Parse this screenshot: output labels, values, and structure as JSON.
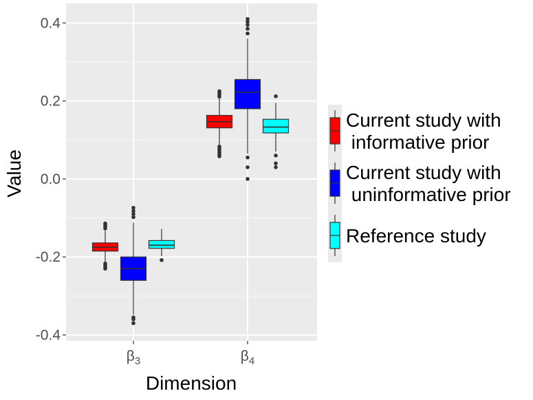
{
  "chart_data": {
    "type": "boxplot",
    "title": "",
    "xlabel": "Dimension",
    "ylabel": "Value",
    "ylim": [
      -0.415,
      0.45
    ],
    "yticks": [
      -0.4,
      -0.2,
      0.0,
      0.2,
      0.4
    ],
    "ytick_labels": [
      "-0.4",
      "-0.2",
      "0.0",
      "0.2",
      "0.4"
    ],
    "grid": true,
    "legend_position": "right",
    "categories": [
      {
        "base": "β",
        "sub": "3"
      },
      {
        "base": "β",
        "sub": "4"
      }
    ],
    "series": [
      {
        "name": "Current study with informative prior",
        "legend_lines": [
          "Current study with",
          " informative prior"
        ],
        "color": "#ff0000",
        "boxes": [
          {
            "category": "β3",
            "whisker_low": -0.213,
            "q1": -0.185,
            "median": -0.175,
            "q3": -0.164,
            "whisker_high": -0.133,
            "outliers": [
              -0.23,
              -0.225,
              -0.221,
              -0.217,
              -0.127,
              -0.122,
              -0.118,
              -0.114
            ]
          },
          {
            "category": "β4",
            "whisker_low": 0.085,
            "q1": 0.131,
            "median": 0.147,
            "q3": 0.163,
            "whisker_high": 0.207,
            "outliers": [
              0.058,
              0.063,
              0.068,
              0.073,
              0.078,
              0.083,
              0.211,
              0.216,
              0.221,
              0.225
            ]
          }
        ]
      },
      {
        "name": "Current study with uninformative prior",
        "legend_lines": [
          "Current study with",
          " uninformative prior"
        ],
        "color": "#0000ff",
        "boxes": [
          {
            "category": "β3",
            "whisker_low": -0.348,
            "q1": -0.26,
            "median": -0.23,
            "q3": -0.2,
            "whisker_high": -0.112,
            "outliers": [
              -0.37,
              -0.36,
              -0.355,
              -0.098,
              -0.09,
              -0.082,
              -0.074
            ]
          },
          {
            "category": "β4",
            "whisker_low": 0.065,
            "q1": 0.18,
            "median": 0.222,
            "q3": 0.255,
            "whisker_high": 0.36,
            "outliers": [
              0.0,
              0.03,
              0.055,
              0.373,
              0.385,
              0.395,
              0.403,
              0.41
            ]
          }
        ]
      },
      {
        "name": "Reference study",
        "legend_lines": [
          "Reference study"
        ],
        "color": "#00ffff",
        "boxes": [
          {
            "category": "β3",
            "whisker_low": -0.198,
            "q1": -0.178,
            "median": -0.17,
            "q3": -0.158,
            "whisker_high": -0.128,
            "outliers": [
              -0.208
            ]
          },
          {
            "category": "β4",
            "whisker_low": 0.07,
            "q1": 0.118,
            "median": 0.133,
            "q3": 0.153,
            "whisker_high": 0.195,
            "outliers": [
              0.03,
              0.04,
              0.06,
              0.212
            ]
          }
        ]
      }
    ]
  }
}
